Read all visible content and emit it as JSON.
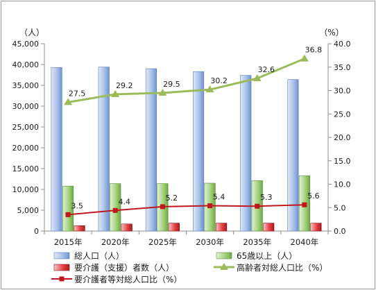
{
  "chart_data": {
    "type": "bar",
    "categories": [
      "2015年",
      "2020年",
      "2025年",
      "2030年",
      "2035年",
      "2040年"
    ],
    "y_left": {
      "unit": "（人）",
      "ticks": [
        "0",
        "5,000",
        "10,000",
        "15,000",
        "20,000",
        "25,000",
        "30,000",
        "35,000",
        "40,000",
        "45,000"
      ],
      "range": [
        0,
        45000
      ]
    },
    "y_right": {
      "unit": "（%）",
      "ticks": [
        "0.0",
        "5.0",
        "10.0",
        "15.0",
        "20.0",
        "25.0",
        "30.0",
        "35.0",
        "40.0"
      ],
      "range": [
        0,
        40
      ]
    },
    "grid": false,
    "legend_position": "bottom",
    "series": [
      {
        "name": "総人口（人）",
        "kind": "bar",
        "axis": "left",
        "color": "#8fb0e0",
        "values": [
          39300,
          39400,
          39000,
          38300,
          37400,
          36400
        ]
      },
      {
        "name": "65歳以上（人）",
        "kind": "bar",
        "axis": "left",
        "color": "#8ec46a",
        "values": [
          10800,
          11400,
          11400,
          11500,
          12100,
          13300
        ]
      },
      {
        "name": "要介護（支援）者数（人）",
        "kind": "bar",
        "axis": "left",
        "color": "#e0393b",
        "values": [
          1300,
          1700,
          1900,
          1900,
          1900,
          1900
        ]
      },
      {
        "name": "高齢者対総人口比（%）",
        "kind": "line",
        "axis": "right",
        "color": "#9bbb59",
        "marker": "triangle",
        "values": [
          27.5,
          29.2,
          29.5,
          30.2,
          32.6,
          36.8
        ],
        "labels": [
          "27.5",
          "29.2",
          "29.5",
          "30.2",
          "32.6",
          "36.8"
        ]
      },
      {
        "name": "要介護者等対総人口比（%）",
        "kind": "line",
        "axis": "right",
        "color": "#c0161c",
        "marker": "square",
        "values": [
          3.5,
          4.4,
          5.2,
          5.4,
          5.3,
          5.6
        ],
        "labels": [
          "3.5",
          "4.4",
          "5.2",
          "5.4",
          "5.3",
          "5.6"
        ]
      }
    ]
  }
}
